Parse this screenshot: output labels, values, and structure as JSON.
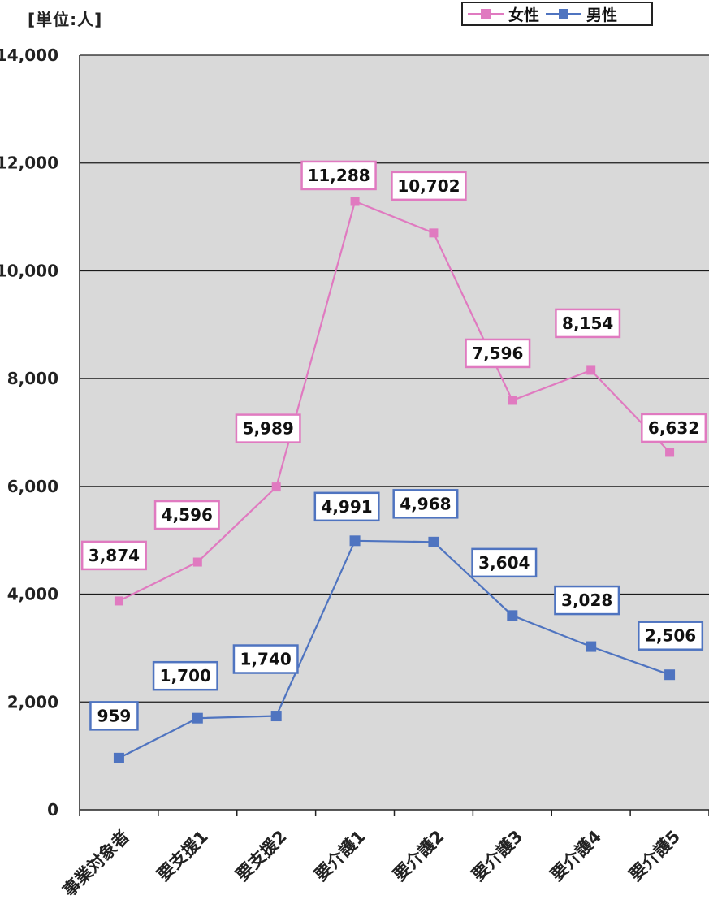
{
  "chart_data": {
    "type": "line",
    "unit_label": "[単位:人]",
    "categories": [
      "事業対象者",
      "要支援1",
      "要支援2",
      "要介護1",
      "要介護2",
      "要介護3",
      "要介護4",
      "要介護5"
    ],
    "series": [
      {
        "name": "女性",
        "color": "#e07ac0",
        "values": [
          3874,
          4596,
          5989,
          11288,
          10702,
          7596,
          8154,
          6632
        ],
        "labels": [
          "3,874",
          "4,596",
          "5,989",
          "11,288",
          "10,702",
          "7,596",
          "8,154",
          "6,632"
        ]
      },
      {
        "name": "男性",
        "color": "#4f74c0",
        "values": [
          959,
          1700,
          1740,
          4991,
          4968,
          3604,
          3028,
          2506
        ],
        "labels": [
          "959",
          "1,700",
          "1,740",
          "4,991",
          "4,968",
          "3,604",
          "3,028",
          "2,506"
        ]
      }
    ],
    "y_ticks": [
      "0",
      "2,000",
      "4,000",
      "6,000",
      "8,000",
      "10,000",
      "12,000",
      "14,000"
    ],
    "ylim": [
      0,
      14000
    ],
    "grid": true,
    "legend_position": "top-right",
    "plot_background": "#d9d9d9"
  }
}
